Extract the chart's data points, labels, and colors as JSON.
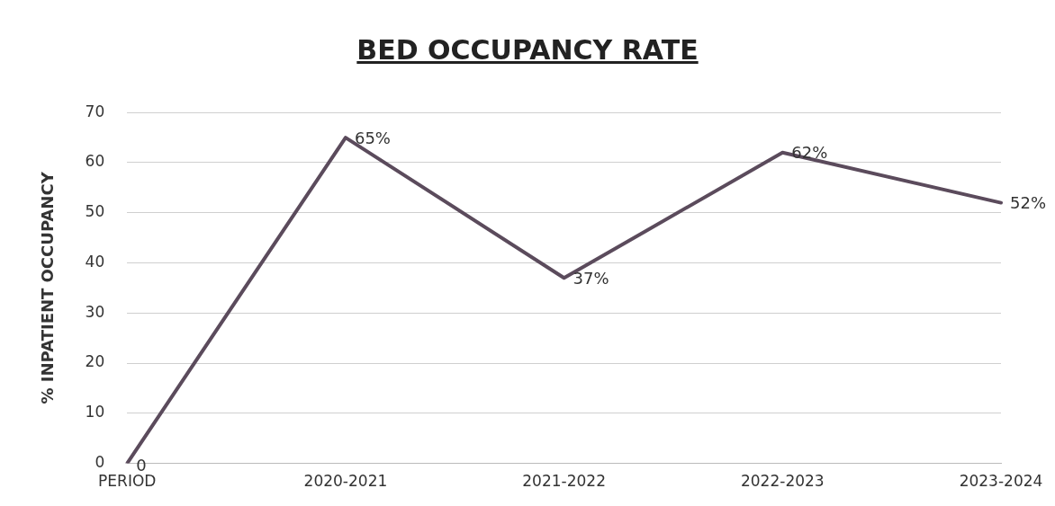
{
  "chart_data": {
    "type": "line",
    "title": "BED OCCUPANCY RATE",
    "ylabel": "% INPATIENT OCCUPANCY",
    "categories": [
      "PERIOD",
      "2020-2021",
      "2021-2022",
      "2022-2023",
      "2023-2024"
    ],
    "series": [
      {
        "color": "#5b4b5c",
        "values": [
          0,
          65,
          37,
          62,
          52
        ],
        "value_labels": [
          "0",
          "65%",
          "37%",
          "62%",
          "52%"
        ]
      }
    ],
    "ylim": [
      0,
      70
    ],
    "yticks": [
      0,
      10,
      20,
      30,
      40,
      50,
      60,
      70
    ],
    "grid": "y",
    "legend": false,
    "marker": "none",
    "line_style": "solid"
  }
}
